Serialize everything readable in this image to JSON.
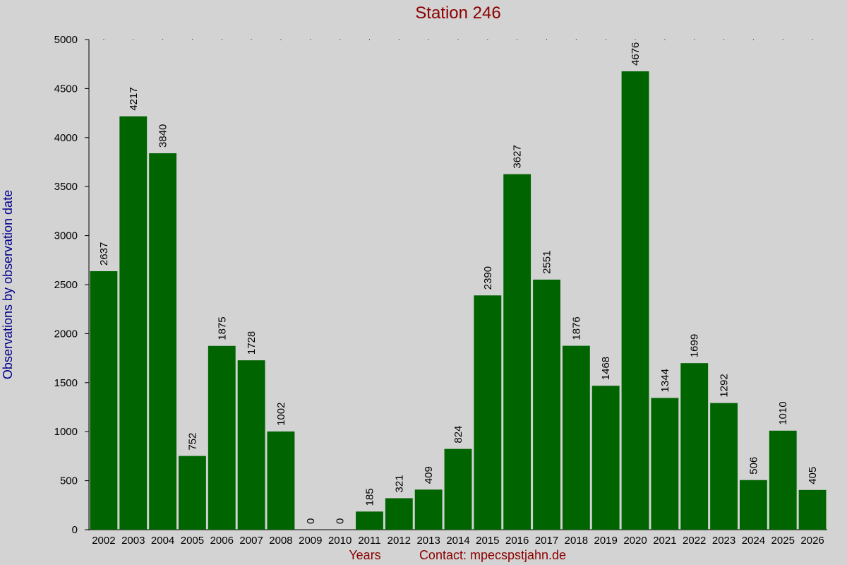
{
  "chart_data": {
    "type": "bar",
    "title": "Station 246",
    "xlabel": "Years",
    "ylabel": "Observations by observation date",
    "footer_contact": "Contact: mpecspstjahn.de",
    "categories": [
      "2002",
      "2003",
      "2004",
      "2005",
      "2006",
      "2007",
      "2008",
      "2009",
      "2010",
      "2011",
      "2012",
      "2013",
      "2014",
      "2015",
      "2016",
      "2017",
      "2018",
      "2019",
      "2020",
      "2021",
      "2022",
      "2023",
      "2024",
      "2025",
      "2026"
    ],
    "values": [
      2637,
      4217,
      3840,
      752,
      1875,
      1728,
      1002,
      0,
      0,
      185,
      321,
      409,
      824,
      2390,
      3627,
      2551,
      1876,
      1468,
      4676,
      1344,
      1699,
      1292,
      506,
      1010,
      405
    ],
    "yticks": [
      0,
      500,
      1000,
      1500,
      2000,
      2500,
      3000,
      3500,
      4000,
      4500,
      5000
    ],
    "ylim": [
      0,
      5000
    ],
    "grid": false,
    "bar_color": "#006400",
    "background": "#d3d3d3",
    "title_color": "#8b0000",
    "ylabel_color": "#00008b"
  }
}
